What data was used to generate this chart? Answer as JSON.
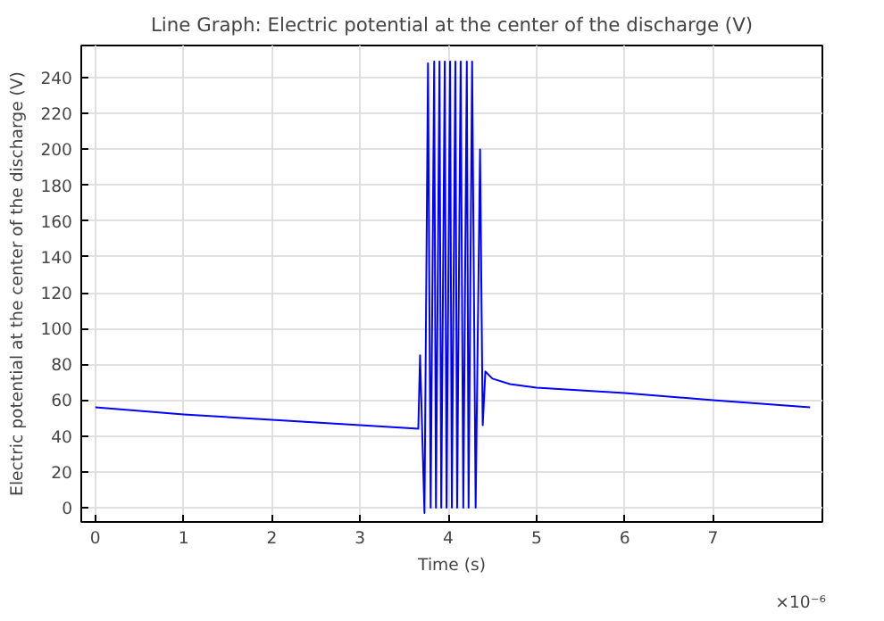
{
  "chart_data": {
    "type": "line",
    "title": "Line Graph: Electric potential at the center of the discharge (V)",
    "xlabel": "Time (s)",
    "ylabel": "Electric potential at the center of the discharge (V)",
    "annotations": [
      "×10⁻⁶"
    ],
    "x": [
      0,
      1,
      2,
      3,
      3.66,
      3.68,
      3.73,
      3.77,
      3.8,
      3.84,
      3.86,
      3.9,
      3.92,
      3.96,
      3.98,
      4.02,
      4.04,
      4.08,
      4.1,
      4.14,
      4.17,
      4.21,
      4.23,
      4.27,
      4.31,
      4.36,
      4.39,
      4.42,
      4.5,
      4.7,
      5,
      6,
      7,
      8.1
    ],
    "series": [
      {
        "color": "#0000ff",
        "values": [
          56,
          52,
          49,
          46,
          44,
          85,
          -3,
          248,
          0,
          249,
          0,
          249,
          0,
          249,
          0,
          249,
          0,
          249,
          0,
          249,
          0,
          249,
          0,
          249,
          0,
          200,
          46,
          76,
          72,
          69,
          67,
          64,
          60,
          56
        ]
      }
    ],
    "xlim": [
      -0.16,
      8.24
    ],
    "ylim": [
      -8,
      258
    ],
    "xticks": [
      0,
      1,
      2,
      3,
      4,
      5,
      6,
      7
    ],
    "yticks": [
      0,
      20,
      40,
      60,
      80,
      100,
      120,
      140,
      160,
      180,
      200,
      220,
      240
    ],
    "grid": true
  }
}
